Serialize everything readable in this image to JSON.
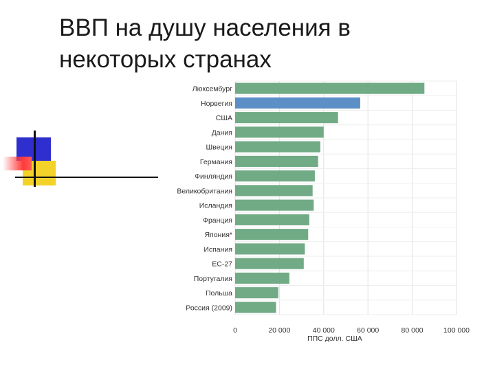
{
  "slide": {
    "title": "ВВП на душу населения в некоторых странах"
  },
  "chart_data": {
    "type": "bar",
    "orientation": "horizontal",
    "categories": [
      "Люксембург",
      "Норвегия",
      "США",
      "Дания",
      "Швеция",
      "Германия",
      "Финляндия",
      "Великобритания",
      "Исландия",
      "Франция",
      "Япония*",
      "Испания",
      "ЕС-27",
      "Португалия",
      "Польша",
      "Россия (2009)"
    ],
    "values": [
      85500,
      56500,
      46500,
      40000,
      38500,
      37500,
      36000,
      35000,
      35500,
      33500,
      33000,
      31500,
      31000,
      24500,
      19500,
      18500
    ],
    "colors": [
      "#71ab86",
      "#5b8fc6",
      "#71ab86",
      "#71ab86",
      "#71ab86",
      "#71ab86",
      "#71ab86",
      "#71ab86",
      "#71ab86",
      "#71ab86",
      "#71ab86",
      "#71ab86",
      "#71ab86",
      "#71ab86",
      "#71ab86",
      "#71ab86"
    ],
    "xlim": [
      0,
      100000
    ],
    "ticks": [
      "0",
      "20 000",
      "40 000",
      "60 000",
      "80 000",
      "100 000"
    ],
    "xlabel": "ППС долл. США",
    "grid": true
  }
}
